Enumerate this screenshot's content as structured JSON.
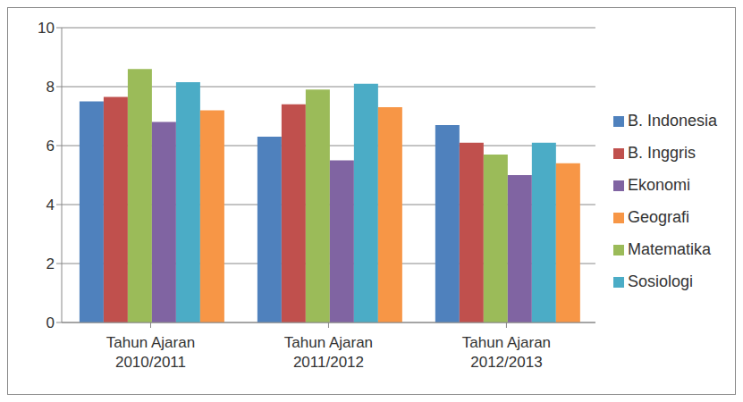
{
  "chart_data": {
    "type": "bar",
    "categories": [
      "Tahun Ajaran 2010/2011",
      "Tahun Ajaran 2011/2012",
      "Tahun Ajaran 2012/2013"
    ],
    "series": [
      {
        "name": "B. Indonesia",
        "color": "#4F81BD",
        "values": [
          7.5,
          6.3,
          6.7
        ]
      },
      {
        "name": "B. Inggris",
        "color": "#C0504D",
        "values": [
          7.65,
          7.4,
          6.1
        ]
      },
      {
        "name": "Matematika",
        "color": "#9BBB59",
        "values": [
          8.6,
          7.9,
          5.7
        ]
      },
      {
        "name": "Ekonomi",
        "color": "#8064A2",
        "values": [
          6.8,
          5.5,
          5.0
        ]
      },
      {
        "name": "Sosiologi",
        "color": "#4BACC6",
        "values": [
          8.15,
          8.1,
          6.1
        ]
      },
      {
        "name": "Geografi",
        "color": "#F79646",
        "values": [
          7.2,
          7.3,
          5.4
        ]
      }
    ],
    "ylim": [
      0,
      10
    ],
    "yticks": [
      0,
      2,
      4,
      6,
      8,
      10
    ],
    "grid": true,
    "legend": "right"
  }
}
